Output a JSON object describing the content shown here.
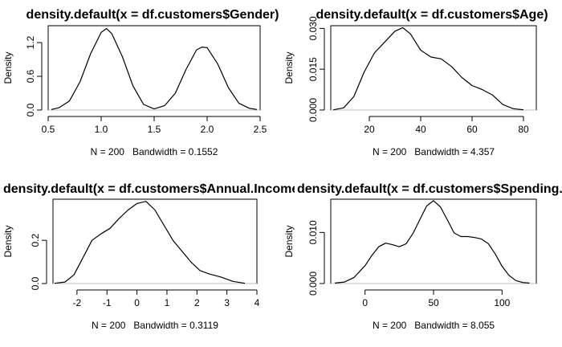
{
  "chart_data": [
    {
      "type": "line",
      "title": "density.default(x = df.customers$Gender)",
      "xlabel": "N = 200   Bandwidth = 0.1552",
      "ylabel": "Density",
      "xlim": [
        0.5,
        2.5
      ],
      "ylim": [
        0,
        1.5
      ],
      "xticks": [
        "0.5",
        "1.0",
        "1.5",
        "2.0",
        "2.5"
      ],
      "yticks": [
        "0.0",
        "0.6",
        "1.2"
      ],
      "x": [
        0.53,
        0.6,
        0.7,
        0.8,
        0.9,
        1.0,
        1.05,
        1.1,
        1.2,
        1.3,
        1.4,
        1.5,
        1.6,
        1.7,
        1.8,
        1.9,
        1.95,
        2.0,
        2.1,
        2.2,
        2.3,
        2.4,
        2.47
      ],
      "series": [
        {
          "values": [
            0.01,
            0.04,
            0.16,
            0.5,
            1.0,
            1.38,
            1.45,
            1.36,
            0.95,
            0.43,
            0.1,
            0.02,
            0.08,
            0.3,
            0.72,
            1.07,
            1.12,
            1.11,
            0.82,
            0.4,
            0.12,
            0.03,
            0.01
          ]
        }
      ]
    },
    {
      "type": "line",
      "title": "density.default(x = df.customers$Age)",
      "xlabel": "N = 200   Bandwidth = 4.357",
      "ylabel": "Density",
      "xlim": [
        5,
        85
      ],
      "ylim": [
        0,
        0.031
      ],
      "xticks": [
        "20",
        "40",
        "60",
        "80"
      ],
      "yticks": [
        "0.000",
        "0.015",
        "0.030"
      ],
      "x": [
        6,
        10,
        14,
        18,
        22,
        26,
        30,
        33,
        36,
        40,
        44,
        48,
        52,
        56,
        60,
        64,
        68,
        72,
        76,
        80
      ],
      "series": [
        {
          "values": [
            0.0001,
            0.0008,
            0.005,
            0.014,
            0.021,
            0.025,
            0.029,
            0.0303,
            0.028,
            0.022,
            0.0195,
            0.0188,
            0.016,
            0.012,
            0.009,
            0.0075,
            0.0055,
            0.002,
            0.0005,
            0.0001
          ]
        }
      ]
    },
    {
      "type": "line",
      "title": "density.default(x = df.customers$Annual.Income)",
      "xlabel": "N = 200   Bandwidth = 0.3119",
      "ylabel": "Density",
      "xlim": [
        -2.8,
        4.0
      ],
      "ylim": [
        0,
        0.39
      ],
      "xticks": [
        "-2",
        "-1",
        "0",
        "1",
        "2",
        "3",
        "4"
      ],
      "yticks": [
        "0.0",
        "0.2"
      ],
      "x": [
        -2.75,
        -2.4,
        -2.1,
        -1.8,
        -1.5,
        -1.2,
        -0.9,
        -0.6,
        -0.3,
        0.0,
        0.3,
        0.6,
        0.9,
        1.2,
        1.5,
        1.8,
        2.1,
        2.4,
        2.8,
        3.2,
        3.6
      ],
      "series": [
        {
          "values": [
            0.001,
            0.007,
            0.04,
            0.12,
            0.2,
            0.23,
            0.255,
            0.3,
            0.34,
            0.37,
            0.38,
            0.34,
            0.27,
            0.2,
            0.15,
            0.1,
            0.06,
            0.045,
            0.03,
            0.01,
            0.001
          ]
        }
      ]
    },
    {
      "type": "line",
      "title": "density.default(x = df.customers$Spending.Score)",
      "xlabel": "N = 200   Bandwidth = 8.055",
      "ylabel": "Density",
      "xlim": [
        -25,
        125
      ],
      "ylim": [
        0,
        0.0165
      ],
      "xticks": [
        "0",
        "50",
        "100"
      ],
      "yticks": [
        "0.000",
        "0.010"
      ],
      "x": [
        -22,
        -15,
        -8,
        0,
        5,
        10,
        15,
        20,
        25,
        30,
        35,
        40,
        45,
        50,
        55,
        60,
        65,
        70,
        75,
        80,
        85,
        90,
        95,
        100,
        105,
        110,
        115,
        120
      ],
      "series": [
        {
          "values": [
            0.0001,
            0.0003,
            0.0012,
            0.0035,
            0.0055,
            0.0072,
            0.0079,
            0.0076,
            0.0072,
            0.0078,
            0.0098,
            0.0125,
            0.0152,
            0.0162,
            0.015,
            0.0125,
            0.0099,
            0.0092,
            0.0092,
            0.009,
            0.0087,
            0.0078,
            0.0058,
            0.0034,
            0.0016,
            0.0006,
            0.0002,
            0.0001
          ]
        }
      ]
    }
  ]
}
